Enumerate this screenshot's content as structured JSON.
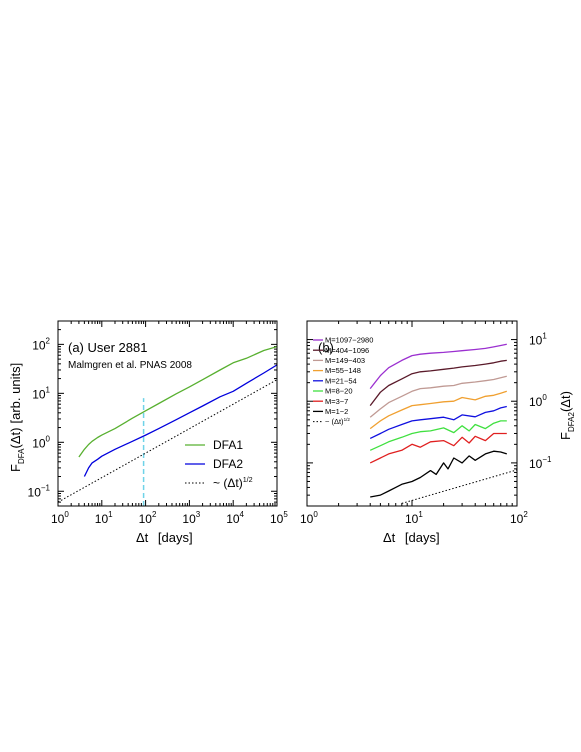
{
  "chart_data": [
    {
      "type": "line",
      "panel_label": "(a) User 2881",
      "annotation": "Malmgren et al. PNAS 2008",
      "xlabel_main": "Δt",
      "xlabel_unit": "[days]",
      "ylabel_main": "F",
      "ylabel_sub": "DFA",
      "ylabel_rest": "(Δt)",
      "ylabel_unit": "[arb. units]",
      "xscale": "log",
      "yscale": "log",
      "xlim": [
        1,
        100000
      ],
      "ylim": [
        0.05,
        300
      ],
      "x_ticks": [
        {
          "v": 1,
          "b": "10",
          "e": "0"
        },
        {
          "v": 10,
          "b": "10",
          "e": "1"
        },
        {
          "v": 100,
          "b": "10",
          "e": "2"
        },
        {
          "v": 1000,
          "b": "10",
          "e": "3"
        },
        {
          "v": 10000,
          "b": "10",
          "e": "4"
        },
        {
          "v": 100000,
          "b": "10",
          "e": "5"
        }
      ],
      "y_ticks": [
        {
          "v": 0.1,
          "b": "10",
          "e": "−1"
        },
        {
          "v": 1,
          "b": "10",
          "e": "0"
        },
        {
          "v": 10,
          "b": "10",
          "e": "1"
        },
        {
          "v": 100,
          "b": "10",
          "e": "2"
        }
      ],
      "vline": {
        "x": 90,
        "y_from": 0.05,
        "y_to": 8,
        "color": "#6fd3e8"
      },
      "legend_position": "bottom-right",
      "series": [
        {
          "name": "DFA1",
          "color": "#58b030",
          "style": "solid",
          "x": [
            3,
            4,
            5,
            6,
            8,
            10,
            20,
            50,
            100,
            200,
            500,
            1000,
            2000,
            5000,
            10000,
            20000,
            50000,
            100000
          ],
          "y": [
            0.5,
            0.72,
            0.9,
            1.05,
            1.25,
            1.4,
            1.9,
            3.1,
            4.4,
            6.2,
            9.8,
            13.5,
            19,
            30,
            42,
            52,
            75,
            90
          ]
        },
        {
          "name": "DFA2",
          "color": "#0000dd",
          "style": "solid",
          "x": [
            4,
            5,
            6,
            8,
            10,
            20,
            50,
            100,
            200,
            500,
            1000,
            2000,
            5000,
            10000,
            20000,
            50000,
            100000
          ],
          "y": [
            0.2,
            0.3,
            0.38,
            0.45,
            0.52,
            0.72,
            1.05,
            1.4,
            1.9,
            2.9,
            4.0,
            5.5,
            8.5,
            11,
            16,
            26,
            38
          ]
        },
        {
          "name": "~ (Δt)",
          "name_sup": "1/2",
          "color": "#000000",
          "style": "dotted",
          "x": [
            1,
            100000
          ],
          "y": [
            0.06,
            19
          ]
        }
      ]
    },
    {
      "type": "line",
      "panel_label": "(b)",
      "xlabel_main": "Δt",
      "xlabel_unit": "[days]",
      "ylabel_main": "F",
      "ylabel_sub": "DFA2",
      "ylabel_rest": "(Δt)",
      "xscale": "log",
      "yscale": "log",
      "xlim": [
        1,
        100
      ],
      "ylim": [
        0.02,
        20
      ],
      "x_ticks": [
        {
          "v": 1,
          "b": "10",
          "e": "0"
        },
        {
          "v": 10,
          "b": "10",
          "e": "1"
        },
        {
          "v": 100,
          "b": "10",
          "e": "2"
        }
      ],
      "y_ticks": [
        {
          "v": 0.1,
          "b": "10",
          "e": "−1"
        },
        {
          "v": 1,
          "b": "10",
          "e": "0"
        },
        {
          "v": 10,
          "b": "10",
          "e": "1"
        }
      ],
      "legend_position": "top-left",
      "series": [
        {
          "name": "M=1097−2980",
          "color": "#9b30d0",
          "x": [
            4,
            5,
            6,
            8,
            10,
            12,
            15,
            20,
            25,
            30,
            40,
            50,
            60,
            70,
            80
          ],
          "y": [
            1.6,
            2.6,
            3.5,
            4.6,
            5.5,
            5.8,
            6.0,
            6.2,
            6.4,
            6.6,
            6.9,
            7.2,
            7.6,
            8.0,
            8.4
          ]
        },
        {
          "name": "M=404−1096",
          "color": "#5a1a2a",
          "x": [
            4,
            5,
            6,
            8,
            10,
            12,
            15,
            20,
            25,
            30,
            40,
            50,
            60,
            70,
            80
          ],
          "y": [
            0.85,
            1.4,
            1.8,
            2.3,
            2.8,
            3.0,
            3.1,
            3.3,
            3.45,
            3.6,
            3.8,
            4.0,
            4.2,
            4.45,
            4.6
          ]
        },
        {
          "name": "M=149−403",
          "color": "#c09a94",
          "x": [
            4,
            5,
            6,
            8,
            10,
            12,
            15,
            20,
            25,
            30,
            40,
            50,
            60,
            70,
            80
          ],
          "y": [
            0.55,
            0.75,
            0.95,
            1.2,
            1.45,
            1.6,
            1.65,
            1.75,
            1.8,
            1.95,
            2.05,
            2.15,
            2.25,
            2.4,
            2.55
          ]
        },
        {
          "name": "M=55−148",
          "color": "#f0a030",
          "x": [
            4,
            5,
            6,
            8,
            10,
            12,
            15,
            20,
            25,
            30,
            40,
            50,
            60,
            70,
            80
          ],
          "y": [
            0.36,
            0.48,
            0.58,
            0.72,
            0.85,
            0.88,
            0.92,
            0.98,
            1.0,
            1.15,
            1.05,
            1.2,
            1.25,
            1.35,
            1.45
          ]
        },
        {
          "name": "M=21−54",
          "color": "#1010e0",
          "x": [
            4,
            5,
            6,
            8,
            10,
            12,
            15,
            20,
            25,
            30,
            40,
            50,
            60,
            70,
            80
          ],
          "y": [
            0.25,
            0.3,
            0.35,
            0.42,
            0.48,
            0.5,
            0.52,
            0.55,
            0.5,
            0.6,
            0.56,
            0.66,
            0.7,
            0.78,
            0.82
          ]
        },
        {
          "name": "M=8−20",
          "color": "#40e040",
          "x": [
            4,
            5,
            6,
            8,
            10,
            12,
            15,
            20,
            25,
            30,
            35,
            40,
            50,
            60,
            70,
            80
          ],
          "y": [
            0.16,
            0.19,
            0.22,
            0.26,
            0.3,
            0.32,
            0.33,
            0.37,
            0.31,
            0.4,
            0.33,
            0.42,
            0.36,
            0.44,
            0.48,
            0.48
          ]
        },
        {
          "name": "M=3−7",
          "color": "#e02020",
          "x": [
            4,
            5,
            6,
            8,
            10,
            12,
            15,
            20,
            25,
            30,
            35,
            40,
            50,
            60,
            70,
            80
          ],
          "y": [
            0.1,
            0.12,
            0.14,
            0.16,
            0.2,
            0.18,
            0.22,
            0.23,
            0.19,
            0.26,
            0.21,
            0.27,
            0.23,
            0.3,
            0.3,
            0.3
          ]
        },
        {
          "name": "M=1−2",
          "color": "#000000",
          "x": [
            4,
            5,
            6,
            7,
            8,
            10,
            12,
            15,
            17,
            20,
            22,
            25,
            30,
            35,
            40,
            50,
            60,
            70,
            80
          ],
          "y": [
            0.028,
            0.03,
            0.035,
            0.04,
            0.045,
            0.05,
            0.058,
            0.075,
            0.065,
            0.1,
            0.08,
            0.12,
            0.1,
            0.13,
            0.11,
            0.14,
            0.155,
            0.15,
            0.14
          ]
        },
        {
          "name": "~ (Δt)",
          "name_sup": "1/2",
          "color": "#000000",
          "style": "dotted",
          "x": [
            8,
            100
          ],
          "y": [
            0.022,
            0.077
          ]
        }
      ]
    }
  ]
}
